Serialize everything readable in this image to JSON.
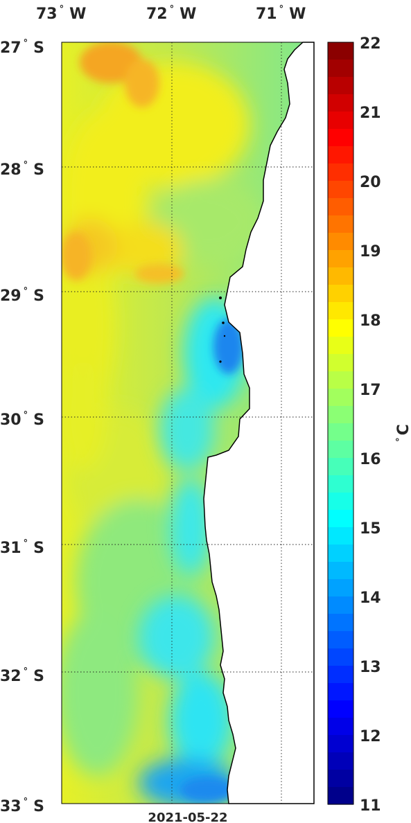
{
  "map": {
    "lon_labels": [
      "73",
      "72",
      "71"
    ],
    "lon_hemi": "W",
    "lat_labels": [
      "27",
      "28",
      "29",
      "30",
      "31",
      "32",
      "33"
    ],
    "lat_hemi": "S",
    "degree_symbol": "°",
    "date": "2021-05-22",
    "lon_range": [
      -73.0,
      -70.7
    ],
    "lat_range": [
      -27.0,
      -33.0
    ],
    "grid": "dotted"
  },
  "colorbar": {
    "ticks": [
      "22",
      "21",
      "20",
      "19",
      "18",
      "17",
      "16",
      "15",
      "14",
      "13",
      "12",
      "11"
    ],
    "unit_degree": "°",
    "unit": "C",
    "range": [
      11,
      22
    ],
    "colormap": "jet",
    "steps": 44
  },
  "colors": {
    "land": "#ffffff",
    "coast": "#000000",
    "warm_patch": "#f5a623",
    "mid_sea": "#c9ea3f",
    "cool_sea": "#2ee8f0",
    "cold_patch": "#1e86ee"
  }
}
